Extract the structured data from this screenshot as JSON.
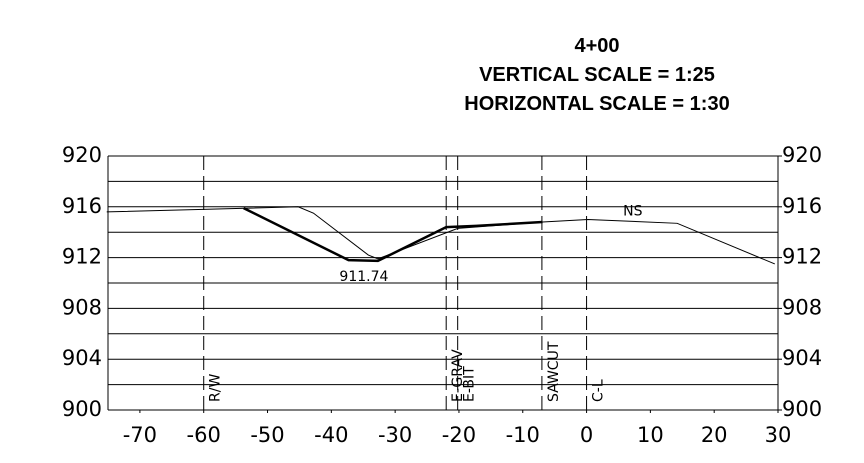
{
  "chart_data": {
    "type": "line",
    "title": "4+00",
    "subtitle": [
      "VERTICAL SCALE = 1:25",
      "HORIZONTAL SCALE = 1:30"
    ],
    "xlim": [
      -75,
      30
    ],
    "ylim": [
      900,
      920
    ],
    "xticks": [
      -70,
      -60,
      -50,
      -40,
      -30,
      -20,
      -10,
      0,
      10,
      20,
      30
    ],
    "yticks": [
      900,
      904,
      908,
      912,
      916,
      920
    ],
    "y2lim": [
      900,
      920
    ],
    "y2ticks": [
      900,
      904,
      908,
      912,
      916,
      920
    ],
    "minor_yticks": [
      902,
      906,
      910,
      914,
      918
    ],
    "grid": true,
    "series": [
      {
        "name": "NS",
        "color": "#000000",
        "width": 1,
        "x": [
          -75.2,
          -45.2,
          -42.8,
          -34.2,
          -32.7,
          -20.2,
          -6.9,
          0.2,
          14.2,
          29.5
        ],
        "values": [
          915.6,
          916,
          915.5,
          912.2,
          911.9,
          914.3,
          914.8,
          915.0,
          914.7,
          911.5
        ]
      },
      {
        "color": "#000000",
        "width": 2.5,
        "x": [
          -53.75,
          -37.3,
          -32.7,
          -22,
          -17.3,
          -6.9
        ],
        "values": [
          915.9,
          911.8,
          911.74,
          914.4,
          914.5,
          914.8
        ],
        "value_labels": [
          null,
          null,
          "911.74",
          null,
          null,
          null
        ]
      }
    ],
    "markers": [
      {
        "x": -60,
        "label": "R/W"
      },
      {
        "x": -22,
        "label": "E-GRAV"
      },
      {
        "x": -20.2,
        "label": "E-BIT"
      },
      {
        "x": -7,
        "label": "SAWCUT"
      },
      {
        "x": 0,
        "label": "C-L"
      }
    ]
  }
}
